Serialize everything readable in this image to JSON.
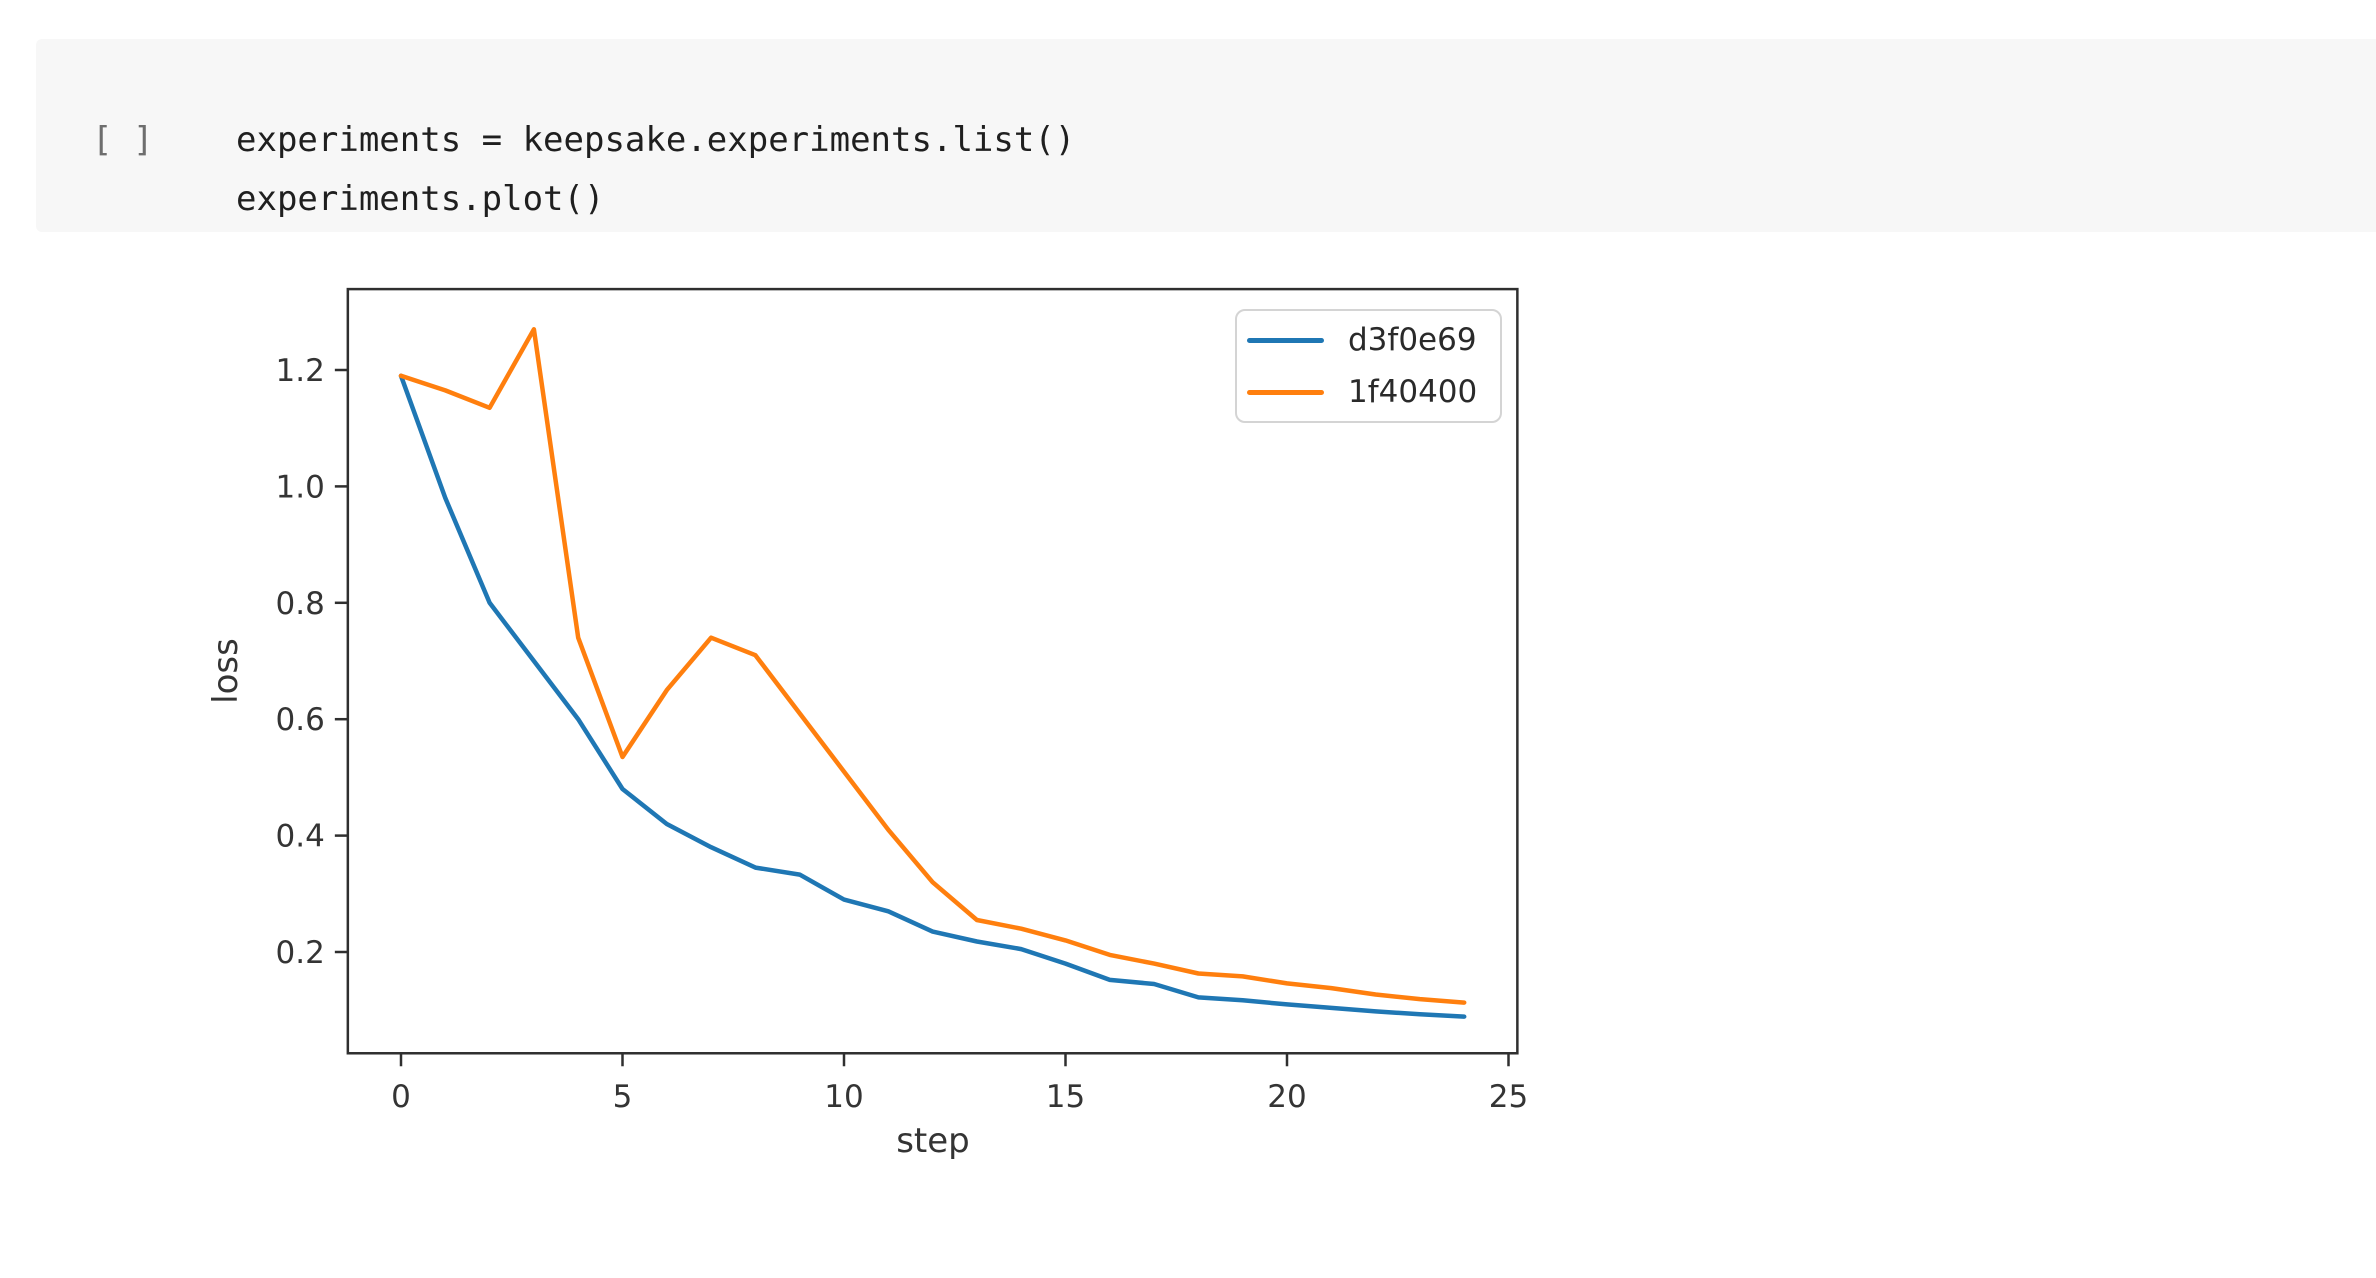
{
  "notebook_cell": {
    "prompt": "[ ]",
    "code_line1": "experiments = keepsake.experiments.list()",
    "code_line2": "experiments.plot()"
  },
  "chart_data": {
    "type": "line",
    "title": "",
    "xlabel": "step",
    "ylabel": "loss",
    "grid": false,
    "legend_position": "upper right",
    "xlim": [
      -1.2,
      25.2
    ],
    "ylim": [
      0.026,
      1.339
    ],
    "x_ticks": {
      "labels": [
        "0",
        "5",
        "10",
        "15",
        "20",
        "25"
      ],
      "values": [
        0,
        5,
        10,
        15,
        20,
        25
      ]
    },
    "y_ticks": {
      "labels": [
        "1.2",
        "1.0",
        "0.8",
        "0.6",
        "0.4",
        "0.2"
      ],
      "values": [
        1.2,
        1.0,
        0.8,
        0.6,
        0.4,
        0.2
      ]
    },
    "x": [
      0,
      1,
      2,
      3,
      4,
      5,
      6,
      7,
      8,
      9,
      10,
      11,
      12,
      13,
      14,
      15,
      16,
      17,
      18,
      19,
      20,
      21,
      22,
      23,
      24
    ],
    "series": [
      {
        "name": "d3f0e69",
        "color": "#1f77b4",
        "values": [
          1.19,
          0.98,
          0.8,
          0.7,
          0.6,
          0.48,
          0.42,
          0.38,
          0.345,
          0.333,
          0.29,
          0.27,
          0.235,
          0.218,
          0.205,
          0.18,
          0.152,
          0.145,
          0.122,
          0.117,
          0.11,
          0.104,
          0.098,
          0.093,
          0.089
        ]
      },
      {
        "name": "1f40400",
        "color": "#ff7f0e",
        "values": [
          1.19,
          1.165,
          1.135,
          1.27,
          0.74,
          0.535,
          0.65,
          0.74,
          0.71,
          0.61,
          0.51,
          0.41,
          0.32,
          0.255,
          0.24,
          0.22,
          0.195,
          0.18,
          0.163,
          0.158,
          0.146,
          0.138,
          0.127,
          0.119,
          0.113
        ]
      }
    ]
  },
  "colors": {
    "cell_background": "#f7f7f7",
    "axis": "#2f2f2f",
    "legend_border": "#d4d4d4"
  }
}
